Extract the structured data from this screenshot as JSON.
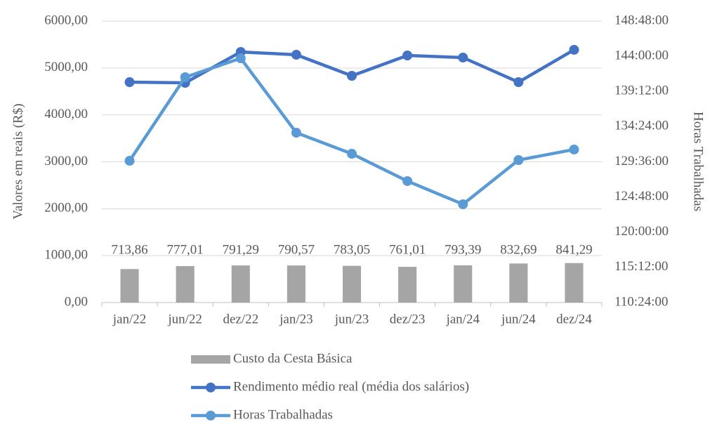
{
  "chart_data": {
    "type": "bar",
    "categories": [
      "jan/22",
      "jun/22",
      "dez/22",
      "jan/23",
      "jun/23",
      "dez/23",
      "jan/24",
      "jun/24",
      "dez/24"
    ],
    "series": [
      {
        "name": "Custo da Cesta Básica",
        "type": "bar",
        "color": "#a5a5a5",
        "values": [
          713.86,
          777.01,
          791.29,
          790.57,
          783.05,
          761.01,
          793.39,
          832.69,
          841.29
        ],
        "value_labels": [
          "713,86",
          "777,01",
          "791,29",
          "790,57",
          "783,05",
          "761,01",
          "793,39",
          "832,69",
          "841,29"
        ]
      },
      {
        "name": "Rendimento médio real (média dos salários)",
        "type": "line",
        "color": "#4472c4",
        "values": [
          4698,
          4683,
          5342,
          5282,
          4833,
          5267,
          5222,
          4698,
          5387
        ]
      },
      {
        "name": "Horas Trabalhadas",
        "type": "line",
        "color": "#5b9bd5",
        "axis": "y2",
        "values": [
          129.74,
          141.14,
          143.72,
          133.57,
          130.7,
          126.97,
          123.81,
          129.84,
          131.28
        ]
      }
    ],
    "ylabel": "Valores em reais (R$)",
    "y2label": "Horas Trabalhadas",
    "ylim": [
      0,
      6000
    ],
    "yticks": [
      {
        "value": 0,
        "label": "0,00"
      },
      {
        "value": 1000,
        "label": "1000,00"
      },
      {
        "value": 2000,
        "label": "2000,00"
      },
      {
        "value": 3000,
        "label": "3000,00"
      },
      {
        "value": 4000,
        "label": "4000,00"
      },
      {
        "value": 5000,
        "label": "5000,00"
      },
      {
        "value": 6000,
        "label": "6000,00"
      }
    ],
    "y2lim": [
      110.4,
      148.8
    ],
    "y2ticks": [
      {
        "value": 110.4,
        "label": "110:24:00"
      },
      {
        "value": 115.2,
        "label": "115:12:00"
      },
      {
        "value": 120,
        "label": "120:00:00"
      },
      {
        "value": 124.8,
        "label": "124:48:00"
      },
      {
        "value": 129.6,
        "label": "129:36:00"
      },
      {
        "value": 134.4,
        "label": "134:24:00"
      },
      {
        "value": 139.2,
        "label": "139:12:00"
      },
      {
        "value": 144,
        "label": "144:00:00"
      },
      {
        "value": 148.8,
        "label": "148:48:00"
      }
    ],
    "grid": true,
    "legend": "bottom"
  }
}
